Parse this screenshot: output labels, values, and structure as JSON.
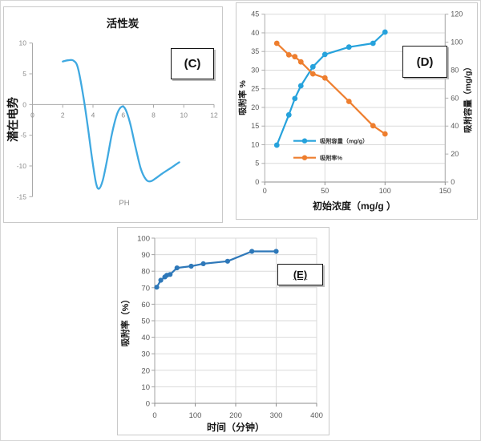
{
  "figure": {
    "background": "#ffffff",
    "panel_labels": {
      "c": "(C)",
      "d": "(D)",
      "e": "(E)"
    }
  },
  "chart_data": [
    {
      "id": "C",
      "type": "line",
      "title": "活性炭",
      "xlabel": "PH",
      "ylabel": "潜在电势",
      "xlim": [
        0,
        12
      ],
      "ylim": [
        -15,
        10
      ],
      "xticks": [
        0,
        2,
        4,
        6,
        8,
        10,
        12
      ],
      "yticks": [
        10,
        5,
        0,
        -5,
        -10,
        -15
      ],
      "grid": false,
      "legend": false,
      "series": [
        {
          "color": "#3fa9e1",
          "smooth": true,
          "points": [
            [
              2.0,
              7.0
            ],
            [
              2.35,
              7.2
            ],
            [
              2.7,
              7.15
            ],
            [
              3.0,
              6.0
            ],
            [
              3.35,
              1.5
            ],
            [
              3.65,
              -3.5
            ],
            [
              3.95,
              -9.0
            ],
            [
              4.2,
              -12.8
            ],
            [
              4.4,
              -13.7
            ],
            [
              4.65,
              -12.3
            ],
            [
              4.95,
              -8.8
            ],
            [
              5.25,
              -4.8
            ],
            [
              5.6,
              -1.5
            ],
            [
              5.9,
              -0.35
            ],
            [
              6.15,
              -0.8
            ],
            [
              6.45,
              -3.0
            ],
            [
              6.8,
              -6.8
            ],
            [
              7.15,
              -10.4
            ],
            [
              7.5,
              -12.2
            ],
            [
              7.8,
              -12.5
            ],
            [
              8.15,
              -12.0
            ],
            [
              8.6,
              -11.2
            ],
            [
              9.1,
              -10.4
            ],
            [
              9.4,
              -9.9
            ],
            [
              9.7,
              -9.4
            ]
          ]
        }
      ]
    },
    {
      "id": "D",
      "type": "line",
      "xlabel": "初始浓度（mg/g ）",
      "ylabel_left": "吸附率 %",
      "ylabel_right": "吸附容量（mg/g）",
      "xlim": [
        0,
        150
      ],
      "ylim_left": [
        0,
        45
      ],
      "ylim_right": [
        0,
        120
      ],
      "xticks": [
        0,
        50,
        100,
        150
      ],
      "yticks_left": [
        0,
        5,
        10,
        15,
        20,
        25,
        30,
        35,
        40,
        45
      ],
      "yticks_right": [
        0,
        20,
        40,
        60,
        80,
        100,
        120
      ],
      "grid": true,
      "legend": true,
      "legend_position": "inside-left-middle",
      "x": [
        10,
        20,
        25,
        30,
        40,
        50,
        70,
        90,
        100
      ],
      "series": [
        {
          "name": "吸附容量（mg/g）",
          "axis": "right",
          "color": "#26a2dc",
          "values": [
            26.4,
            48.0,
            59.7,
            68.8,
            82.4,
            91.2,
            96.5,
            99.2,
            107.2
          ]
        },
        {
          "name": "吸附率%",
          "axis": "left",
          "color": "#ee7e2e",
          "values": [
            37.2,
            34.1,
            33.6,
            32.2,
            29.0,
            27.9,
            21.6,
            15.1,
            12.9
          ]
        }
      ]
    },
    {
      "id": "E",
      "type": "line",
      "xlabel": "时间（分钟）",
      "ylabel": "吸附率（%）",
      "xlim": [
        0,
        400
      ],
      "ylim": [
        0,
        100
      ],
      "xticks": [
        0,
        100,
        200,
        300,
        400
      ],
      "yticks": [
        0,
        10,
        20,
        30,
        40,
        50,
        60,
        70,
        80,
        90,
        100
      ],
      "grid": true,
      "legend": false,
      "series": [
        {
          "color": "#2e78b9",
          "points": [
            [
              5,
              70.3
            ],
            [
              15,
              74.5
            ],
            [
              25,
              76.5
            ],
            [
              30,
              77.5
            ],
            [
              38,
              78.0
            ],
            [
              55,
              82.0
            ],
            [
              90,
              83.0
            ],
            [
              120,
              84.5
            ],
            [
              180,
              86.0
            ],
            [
              240,
              92.0
            ],
            [
              300,
              92.0
            ]
          ]
        }
      ]
    }
  ]
}
